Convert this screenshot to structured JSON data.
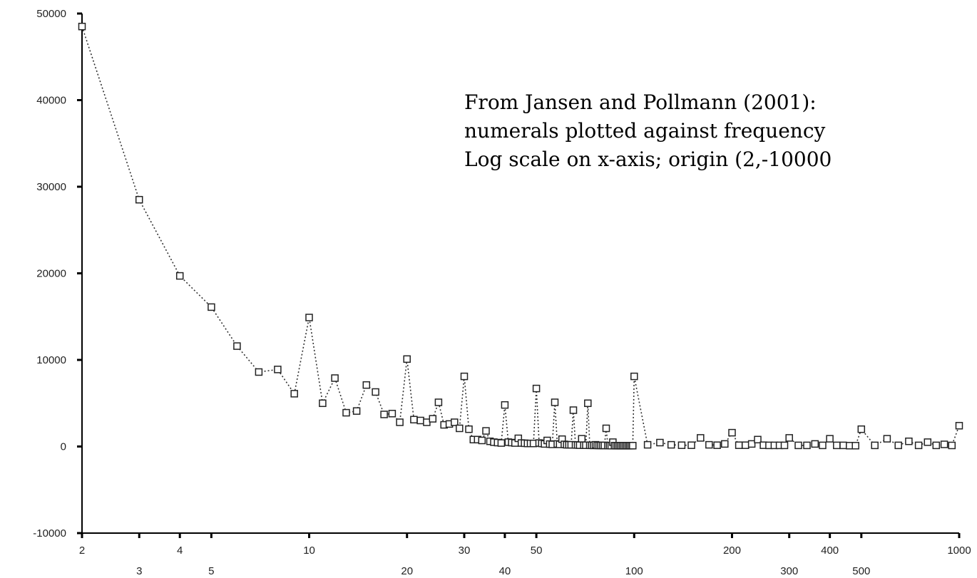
{
  "chart_data": {
    "type": "scatter",
    "title": "",
    "xlabel": "",
    "ylabel": "",
    "x_scale": "log",
    "xlim": [
      2,
      1000
    ],
    "ylim": [
      -10000,
      50000
    ],
    "grid": false,
    "legend": "none",
    "connect_points": "dotted",
    "marker": "hollow-square",
    "annotation_lines": [
      "From Jansen and Pollmann (2001):",
      "numerals plotted against frequency",
      "Log scale on x-axis; origin (2,-10000"
    ],
    "y_ticks": [
      {
        "value": 50000,
        "label": "50000"
      },
      {
        "value": 40000,
        "label": "40000"
      },
      {
        "value": 30000,
        "label": "30000"
      },
      {
        "value": 20000,
        "label": "20000"
      },
      {
        "value": 10000,
        "label": "10000"
      },
      {
        "value": 0,
        "label": "0"
      },
      {
        "value": -10000,
        "label": "-10000"
      }
    ],
    "x_ticks": [
      {
        "value": 2,
        "label": "2",
        "row": 1
      },
      {
        "value": 3,
        "label": "3",
        "row": 2
      },
      {
        "value": 4,
        "label": "4",
        "row": 1
      },
      {
        "value": 5,
        "label": "5",
        "row": 2
      },
      {
        "value": 10,
        "label": "10",
        "row": 1
      },
      {
        "value": 20,
        "label": "20",
        "row": 2
      },
      {
        "value": 30,
        "label": "30",
        "row": 1
      },
      {
        "value": 40,
        "label": "40",
        "row": 2
      },
      {
        "value": 50,
        "label": "50",
        "row": 1
      },
      {
        "value": 100,
        "label": "100",
        "row": 2
      },
      {
        "value": 200,
        "label": "200",
        "row": 1
      },
      {
        "value": 300,
        "label": "300",
        "row": 2
      },
      {
        "value": 400,
        "label": "400",
        "row": 1
      },
      {
        "value": 500,
        "label": "500",
        "row": 2
      },
      {
        "value": 1000,
        "label": "1000",
        "row": 1
      }
    ],
    "x": [
      2,
      3,
      4,
      5,
      6,
      7,
      8,
      9,
      10,
      11,
      12,
      13,
      14,
      15,
      16,
      17,
      18,
      19,
      20,
      21,
      22,
      23,
      24,
      25,
      26,
      27,
      28,
      29,
      30,
      31,
      32,
      33,
      34,
      35,
      36,
      37,
      38,
      39,
      40,
      41,
      42,
      43,
      44,
      45,
      46,
      47,
      48,
      49,
      50,
      51,
      52,
      53,
      54,
      55,
      56,
      57,
      58,
      59,
      60,
      61,
      62,
      63,
      64,
      65,
      66,
      67,
      68,
      69,
      70,
      71,
      72,
      73,
      74,
      75,
      76,
      77,
      78,
      79,
      80,
      81,
      82,
      83,
      84,
      85,
      86,
      87,
      88,
      89,
      90,
      91,
      92,
      93,
      94,
      95,
      96,
      97,
      98,
      99,
      100,
      110,
      120,
      130,
      140,
      150,
      160,
      170,
      180,
      190,
      200,
      210,
      220,
      230,
      240,
      250,
      260,
      270,
      280,
      290,
      300,
      320,
      340,
      360,
      380,
      400,
      420,
      440,
      460,
      480,
      500,
      550,
      600,
      650,
      700,
      750,
      800,
      850,
      900,
      950,
      1000
    ],
    "values": [
      48500,
      28500,
      19700,
      16100,
      11600,
      8600,
      8900,
      6100,
      14900,
      5000,
      7900,
      3900,
      4100,
      7100,
      6300,
      3700,
      3800,
      2800,
      10100,
      3100,
      3000,
      2800,
      3200,
      5100,
      2500,
      2600,
      2800,
      2100,
      8100,
      2000,
      800,
      800,
      700,
      1800,
      600,
      500,
      450,
      400,
      4800,
      500,
      450,
      400,
      950,
      400,
      380,
      350,
      350,
      350,
      6700,
      400,
      350,
      300,
      700,
      280,
      250,
      5100,
      300,
      250,
      850,
      250,
      200,
      200,
      200,
      4200,
      180,
      170,
      160,
      900,
      150,
      150,
      5000,
      140,
      140,
      130,
      200,
      130,
      120,
      120,
      120,
      120,
      2100,
      110,
      110,
      100,
      500,
      100,
      100,
      100,
      100,
      100,
      100,
      100,
      100,
      100,
      100,
      100,
      100,
      100,
      8100,
      200,
      450,
      200,
      150,
      150,
      1000,
      200,
      150,
      300,
      1600,
      150,
      150,
      300,
      800,
      150,
      130,
      130,
      130,
      130,
      1000,
      130,
      130,
      300,
      130,
      900,
      130,
      130,
      100,
      100,
      2000,
      130,
      900,
      130,
      600,
      130,
      500,
      130,
      250,
      120,
      2400
    ]
  }
}
